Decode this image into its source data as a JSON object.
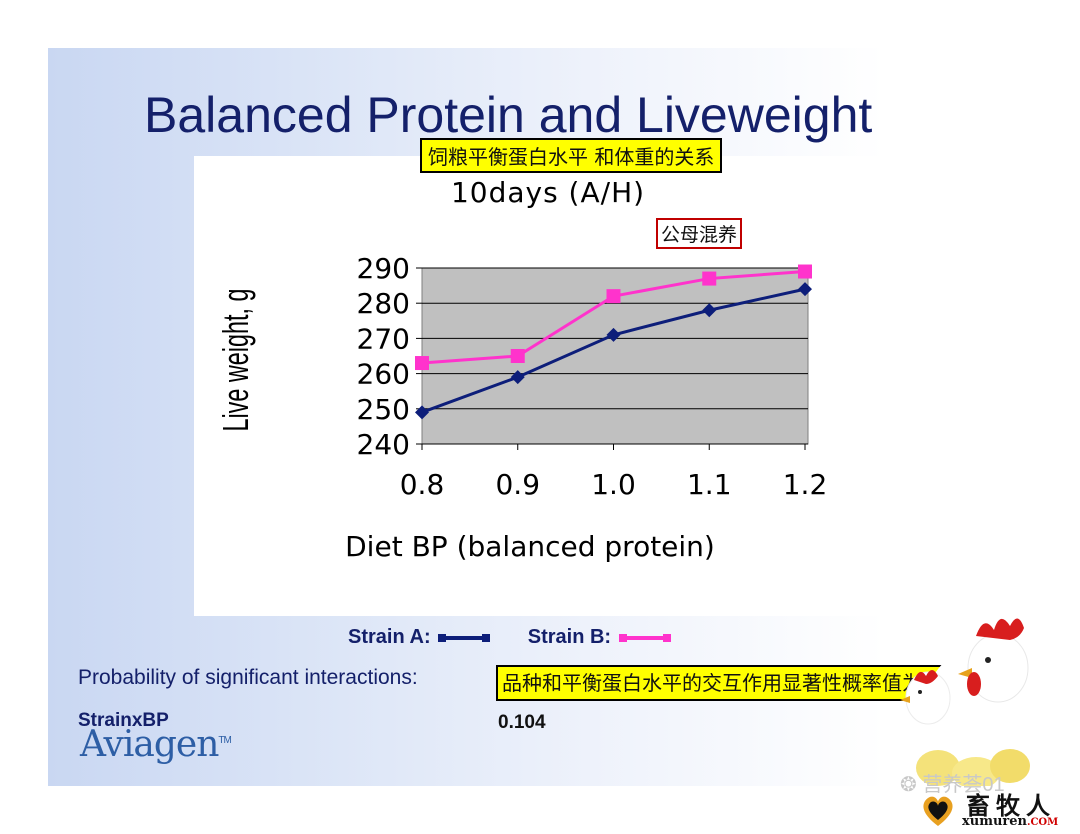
{
  "slide": {
    "title": "Balanced Protein and Liveweight",
    "callout_title": "饲粮平衡蛋白水平 和体重的关系",
    "callout_mixed": "公母混养",
    "callout_interaction": "品种和平衡蛋白水平的交互作用显著性概率值为: 0.104",
    "probability_label": "Probability of significant interactions:",
    "strain_x_bp": "StrainxBP",
    "probability_value": "0.104",
    "logo_text": "Aviagen",
    "logo_tm": "TM",
    "watermark": "营养荟01",
    "site_cn": "畜牧人",
    "site_en": "xumuren",
    "site_tld": ".COM"
  },
  "legend": [
    {
      "label": "Strain A:",
      "color": "#0d1e7a",
      "marker": "diamond"
    },
    {
      "label": "Strain B:",
      "color": "#ff33cc",
      "marker": "square"
    }
  ],
  "chart_data": {
    "type": "line",
    "title": "10days (A/H)",
    "xlabel": "Diet BP (balanced protein)",
    "ylabel": "Live weight, g",
    "categories": [
      "0.8",
      "0.9",
      "1.0",
      "1.1",
      "1.2"
    ],
    "ylim": [
      240,
      290
    ],
    "yticks": [
      "240",
      "250",
      "260",
      "270",
      "280",
      "290"
    ],
    "grid": true,
    "series": [
      {
        "name": "Strain A",
        "color": "#0d1e7a",
        "marker": "diamond",
        "values": [
          249,
          259,
          271,
          278,
          284
        ]
      },
      {
        "name": "Strain B",
        "color": "#ff33cc",
        "marker": "square",
        "values": [
          263,
          265,
          282,
          287,
          289
        ]
      }
    ]
  }
}
